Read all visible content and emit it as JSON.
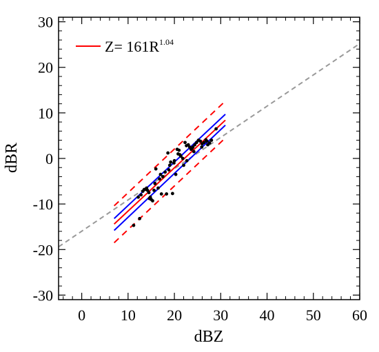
{
  "chart_data": {
    "type": "scatter",
    "xlabel": "dBZ",
    "ylabel": "dBR",
    "xlim": [
      -5,
      60
    ],
    "ylim": [
      -31,
      31
    ],
    "xticks": [
      0,
      10,
      20,
      30,
      40,
      50,
      60
    ],
    "yticks": [
      -30,
      -20,
      -10,
      0,
      10,
      20,
      30
    ],
    "xtick_labels": [
      "0",
      "10",
      "20",
      "30",
      "40",
      "50",
      "60"
    ],
    "ytick_labels": [
      "-30",
      "-20",
      "-10",
      "0",
      "10",
      "20",
      "30"
    ],
    "minor_tick_step": 2,
    "legend": {
      "position": "top-left",
      "entries": [
        {
          "prefix": "Z= 161R",
          "superscript": "1.04",
          "color": "#ff0000"
        }
      ]
    },
    "colors": {
      "fit": "#ff0000",
      "confidence": "#0000ff",
      "prediction": "#ff0000",
      "reference": "#999999",
      "points": "#000000"
    },
    "series": [
      {
        "role": "reference",
        "style": "dashed",
        "x": [
          -5,
          60
        ],
        "y": [
          -19.4,
          25.2
        ]
      },
      {
        "role": "fit",
        "style": "solid",
        "x": [
          7,
          31
        ],
        "y": [
          -14.4,
          8.4
        ]
      },
      {
        "role": "confidence-upper",
        "style": "solid",
        "x": [
          7,
          31
        ],
        "y": [
          -13.2,
          9.7
        ]
      },
      {
        "role": "confidence-lower",
        "style": "solid",
        "x": [
          7,
          31
        ],
        "y": [
          -15.8,
          7.3
        ]
      },
      {
        "role": "prediction-upper",
        "style": "dashed",
        "x": [
          7,
          31
        ],
        "y": [
          -10.4,
          12.6
        ]
      },
      {
        "role": "prediction-lower",
        "style": "dashed",
        "x": [
          7,
          31
        ],
        "y": [
          -18.5,
          4.5
        ]
      },
      {
        "role": "observations",
        "style": "points",
        "x": [
          11.2,
          12.5,
          12.8,
          13.2,
          13.8,
          14.0,
          14.2,
          14.5,
          14.8,
          15.0,
          15.3,
          15.6,
          16.0,
          16.5,
          17.0,
          17.2,
          17.5,
          18.0,
          18.3,
          18.6,
          19.0,
          19.2,
          19.6,
          20.0,
          20.3,
          20.6,
          21.0,
          21.4,
          21.8,
          22.0,
          22.3,
          22.6,
          23.0,
          23.3,
          23.6,
          24.0,
          24.4,
          24.8,
          25.2,
          25.6,
          26.0,
          26.4,
          26.8,
          27.2,
          27.6,
          28.0,
          29.0,
          12.2,
          13.5,
          14.6,
          15.8,
          18.8,
          19.9,
          21.2,
          22.7,
          24.2,
          25.9,
          27.0,
          16.8,
          20.8,
          23.8
        ],
        "y": [
          -14.7,
          -13.2,
          -8.0,
          -7.2,
          -6.8,
          -6.5,
          -7.0,
          -7.5,
          -8.5,
          -9.0,
          -9.3,
          -7.0,
          -2.3,
          -6.5,
          -3.5,
          -7.8,
          -4.0,
          -3.0,
          -7.8,
          1.2,
          -1.5,
          -0.8,
          -7.7,
          -0.5,
          -3.5,
          2.0,
          1.8,
          0.5,
          0.0,
          -1.5,
          3.5,
          2.8,
          3.0,
          2.5,
          2.0,
          2.5,
          3.0,
          3.5,
          4.0,
          3.8,
          3.2,
          3.5,
          4.1,
          3.0,
          3.4,
          4.0,
          6.5,
          -8.5,
          -6.8,
          -8.8,
          -5.5,
          -2.5,
          -1.0,
          0.8,
          -0.5,
          1.5,
          2.5,
          3.8,
          -4.5,
          1.0,
          2.2
        ]
      }
    ]
  }
}
